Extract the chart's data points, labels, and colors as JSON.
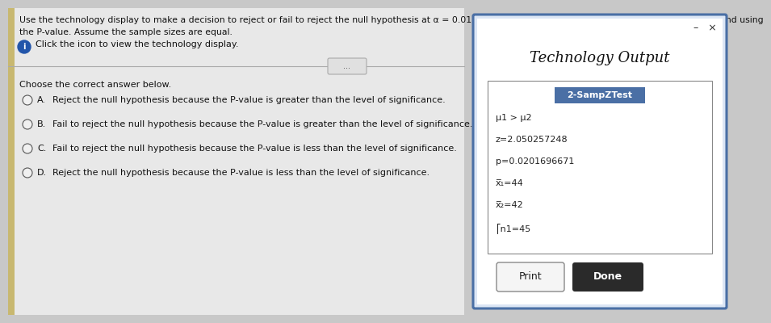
{
  "title_line1": "Use the technology display to make a decision to reject or fail to reject the null hypothesis at α = 0.01. Make the decision using the standardized test statistic and using",
  "title_line2": "the P-value. Assume the sample sizes are equal.",
  "icon_text": "Click the icon to view the technology display.",
  "choose_text": "Choose the correct answer below.",
  "options": [
    {
      "label": "A.",
      "text": "Reject the null hypothesis because the P-value is greater than the level of significance."
    },
    {
      "label": "B.",
      "text": "Fail to reject the null hypothesis because the P-value is greater than the level of significance."
    },
    {
      "label": "C.",
      "text": "Fail to reject the null hypothesis because the P-value is less than the level of significance."
    },
    {
      "label": "D.",
      "text": "Reject the null hypothesis because the P-value is less than the level of significance."
    }
  ],
  "popup_title": "Technology Output",
  "popup_header": "2-SampZTest",
  "popup_lines": [
    "μ1 > μ2",
    "z=2.050257248",
    "p=0.0201696671",
    "x̅₁=44",
    "x̅₂=42",
    "⎡n1=45"
  ],
  "btn_print": "Print",
  "btn_done": "Done",
  "page_bg": "#c8c8c8",
  "left_bg": "#e8e8e8",
  "popup_outer_bg": "#dce6f5",
  "popup_bg": "#ffffff",
  "popup_border": "#4a6fa5",
  "inner_box_bg": "#ffffff",
  "inner_box_border": "#888888",
  "header_bg": "#4a6fa5",
  "header_text_color": "#ffffff",
  "done_btn_bg": "#2a2a2a",
  "done_btn_text_color": "#ffffff",
  "print_btn_bg": "#f5f5f5",
  "print_btn_border": "#888888",
  "text_color": "#111111",
  "light_text_color": "#444444",
  "radio_fill": "#f0f0f0",
  "radio_border": "#555555",
  "divider_color": "#aaaaaa",
  "title_fontsize": 7.8,
  "body_fontsize": 8.0,
  "option_fontsize": 8.0,
  "popup_title_fontsize": 13,
  "popup_header_fontsize": 8,
  "popup_line_fontsize": 8.0
}
